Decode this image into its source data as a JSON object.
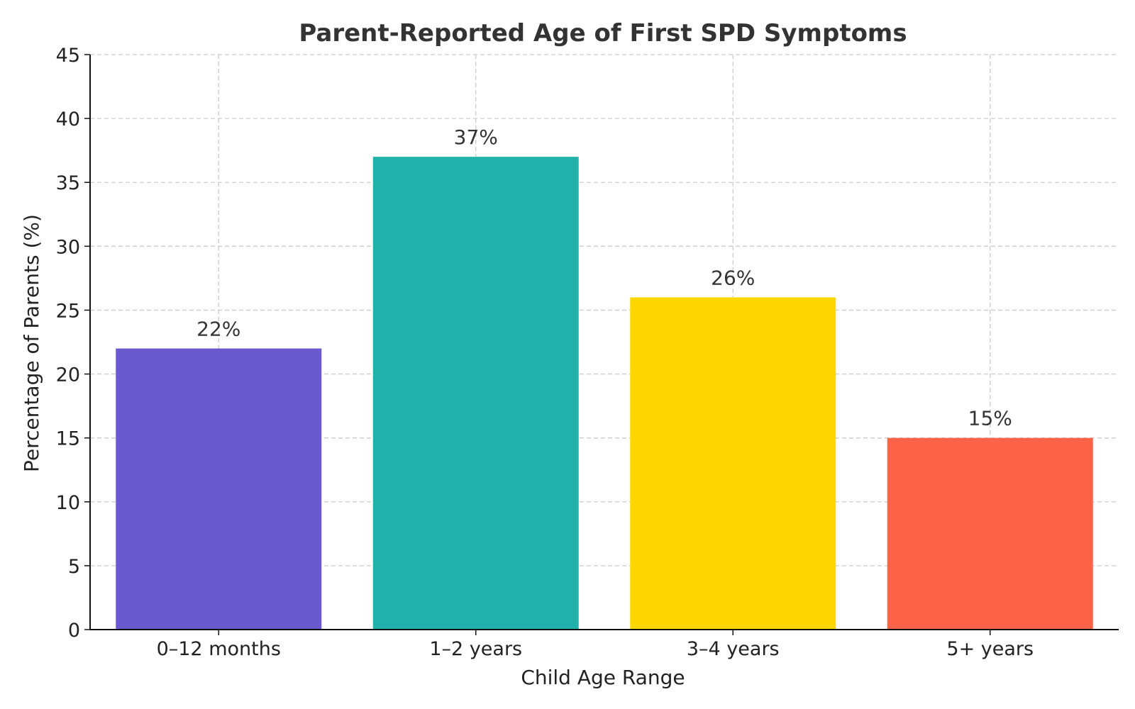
{
  "chart_data": {
    "type": "bar",
    "title": "Parent-Reported Age of First SPD Symptoms",
    "xlabel": "Child Age Range",
    "ylabel": "Percentage of Parents (%)",
    "categories": [
      "0–12 months",
      "1–2 years",
      "3–4 years",
      "5+ years"
    ],
    "values": [
      22,
      37,
      26,
      15
    ],
    "value_labels": [
      "22%",
      "37%",
      "26%",
      "15%"
    ],
    "colors": [
      "#6A5ACD",
      "#20B2AA",
      "#FFD700",
      "#FF6347"
    ],
    "ylim": [
      0,
      45
    ],
    "yticks": [
      0,
      5,
      10,
      15,
      20,
      25,
      30,
      35,
      40,
      45
    ],
    "grid": true,
    "legend": "none"
  }
}
